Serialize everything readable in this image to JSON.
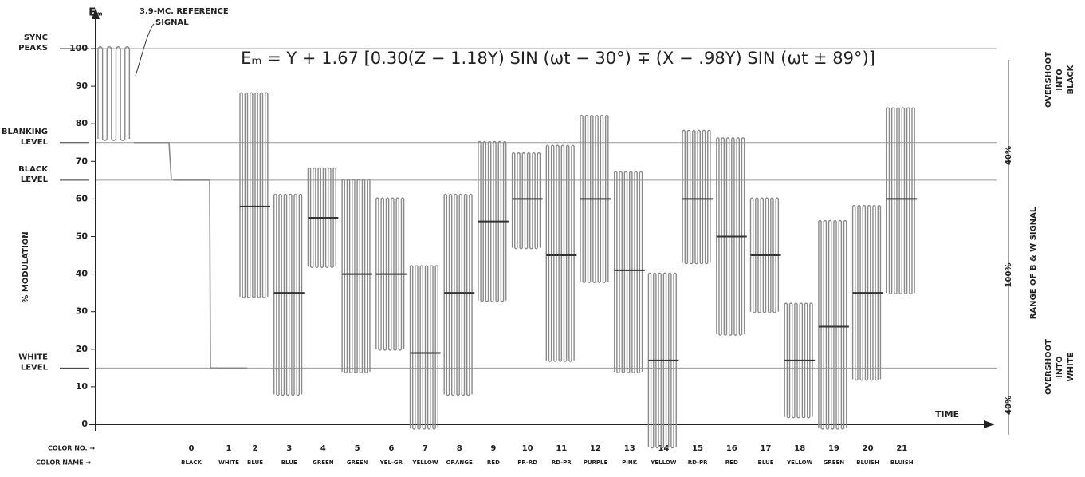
{
  "chart_data": {
    "type": "waveform",
    "formula": "Eₘ = Y + 1.67 [0.30(Z − 1.18Y) SIN (ωt − 30°) ∓ (X − .98Y) SIN (ωt ± 89°)]",
    "y_axis_symbol": "Eₘ",
    "ylabel": "% MODULATION",
    "xlabel": "TIME",
    "reference_signal": [
      "3.9-MC. REFERENCE",
      "SIGNAL"
    ],
    "sync_burst": {
      "max": 100,
      "min": 76
    },
    "ylim": [
      0,
      100
    ],
    "yticks": [
      0,
      10,
      20,
      30,
      40,
      50,
      60,
      70,
      80,
      90,
      100
    ],
    "levels": [
      {
        "value": 100,
        "label": [
          "SYNC",
          "PEAKS"
        ]
      },
      {
        "value": 75,
        "label": [
          "BLANKING",
          "LEVEL"
        ]
      },
      {
        "value": 65,
        "label": [
          "BLACK",
          "LEVEL"
        ]
      },
      {
        "value": 15,
        "label": [
          "WHITE",
          "LEVEL"
        ]
      }
    ],
    "color_no_label": "COLOR NO. →",
    "color_name_label": "COLOR NAME →",
    "categories": [
      "0",
      "1",
      "2",
      "3",
      "4",
      "5",
      "6",
      "7",
      "8",
      "9",
      "10",
      "11",
      "12",
      "13",
      "14",
      "15",
      "16",
      "17",
      "18",
      "19",
      "20",
      "21"
    ],
    "names": [
      "BLACK",
      "WHITE",
      "BLUE",
      "BLUE",
      "GREEN",
      "GREEN",
      "YEL-GR",
      "YELLOW",
      "ORANGE",
      "RED",
      "PR-RD",
      "RD-PR",
      "PURPLE",
      "PINK",
      "YELLOW",
      "RD-PR",
      "RED",
      "BLUE",
      "YELLOW",
      "GREEN",
      "BLUISH",
      "BLUISH"
    ],
    "max": [
      65,
      15,
      88,
      61,
      68,
      65,
      60,
      42,
      61,
      75,
      72,
      74,
      82,
      67,
      40,
      78,
      76,
      60,
      32,
      54,
      58,
      84
    ],
    "mean": [
      65,
      15,
      58,
      35,
      55,
      40,
      40,
      19,
      35,
      54,
      60,
      45,
      60,
      41,
      17,
      60,
      50,
      45,
      17,
      26,
      35,
      60
    ],
    "min": [
      65,
      15,
      34,
      8,
      42,
      14,
      20,
      -1,
      8,
      33,
      47,
      17,
      38,
      14,
      -6,
      43,
      24,
      30,
      2,
      -1,
      12,
      35
    ],
    "color": "#8a8a8a",
    "right_annotations": {
      "overshoot_black": [
        "OVERSHOOT",
        "INTO",
        "BLACK"
      ],
      "upper_pct": "40%",
      "range_pct": "100%",
      "range_text": "RANGE OF B & W SIGNAL",
      "lower_pct": "40%",
      "overshoot_white": [
        "OVERSHOOT",
        "INTO",
        "WHITE"
      ]
    }
  }
}
